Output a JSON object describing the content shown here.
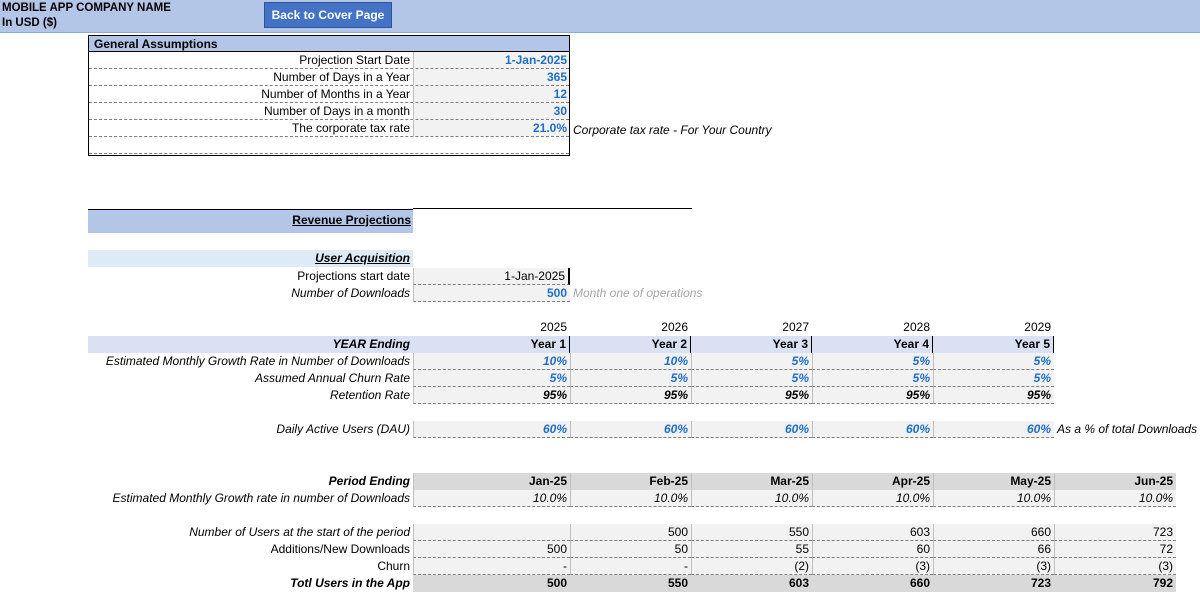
{
  "header": {
    "company": "MOBILE APP COMPANY NAME",
    "currency": "In USD ($)",
    "back_button": "Back to Cover Page"
  },
  "general_assumptions": {
    "title": "General Assumptions",
    "rows": [
      {
        "label": "Projection Start Date",
        "value": "1-Jan-2025"
      },
      {
        "label": "Number of Days in a Year",
        "value": "365"
      },
      {
        "label": "Number of Months in a Year",
        "value": "12"
      },
      {
        "label": "Number of Days in a month",
        "value": "30"
      },
      {
        "label": "The corporate tax rate",
        "value": "21.0%"
      }
    ],
    "tax_note": "Corporate tax rate - For Your Country"
  },
  "revenue": {
    "title": "Revenue Projections",
    "user_acq_title": "User Acquisition",
    "start_date_label": "Projections  start date",
    "start_date_value": "1-Jan-2025",
    "downloads_label": "Number of Downloads",
    "downloads_value": "500",
    "downloads_note": "Month one of operations"
  },
  "yearly": {
    "years": [
      "2025",
      "2026",
      "2027",
      "2028",
      "2029"
    ],
    "year_ending_label": "YEAR Ending",
    "year_labels": [
      "Year 1",
      "Year 2",
      "Year 3",
      "Year 4",
      "Year 5"
    ],
    "growth_label": "Estimated Monthly Growth Rate in Number of  Downloads",
    "growth": [
      "10%",
      "10%",
      "5%",
      "5%",
      "5%"
    ],
    "churn_label": "Assumed Annual Churn Rate",
    "churn": [
      "5%",
      "5%",
      "5%",
      "5%",
      "5%"
    ],
    "retention_label": "Retention Rate",
    "retention": [
      "95%",
      "95%",
      "95%",
      "95%",
      "95%"
    ],
    "dau_label": "Daily Active Users (DAU)",
    "dau": [
      "60%",
      "60%",
      "60%",
      "60%",
      "60%"
    ],
    "dau_note": "As a % of total Downloads"
  },
  "monthly": {
    "period_label": "Period Ending",
    "periods": [
      "Jan-25",
      "Feb-25",
      "Mar-25",
      "Apr-25",
      "May-25",
      "Jun-25"
    ],
    "growth_label": "Estimated Monthly Growth rate in number of Downloads",
    "growth": [
      "10.0%",
      "10.0%",
      "10.0%",
      "10.0%",
      "10.0%",
      "10.0%"
    ],
    "start_label": "Number of Users at the start of the period",
    "start": [
      "",
      "500",
      "550",
      "603",
      "660",
      "723"
    ],
    "additions_label": "Additions/New Downloads",
    "additions": [
      "500",
      "50",
      "55",
      "60",
      "66",
      "72"
    ],
    "churn_label": "Churn",
    "churn": [
      "-",
      "-",
      "(2)",
      "(3)",
      "(3)",
      "(3)"
    ],
    "total_label": "Totl Users in the App",
    "total": [
      "500",
      "550",
      "603",
      "660",
      "723",
      "792"
    ]
  }
}
